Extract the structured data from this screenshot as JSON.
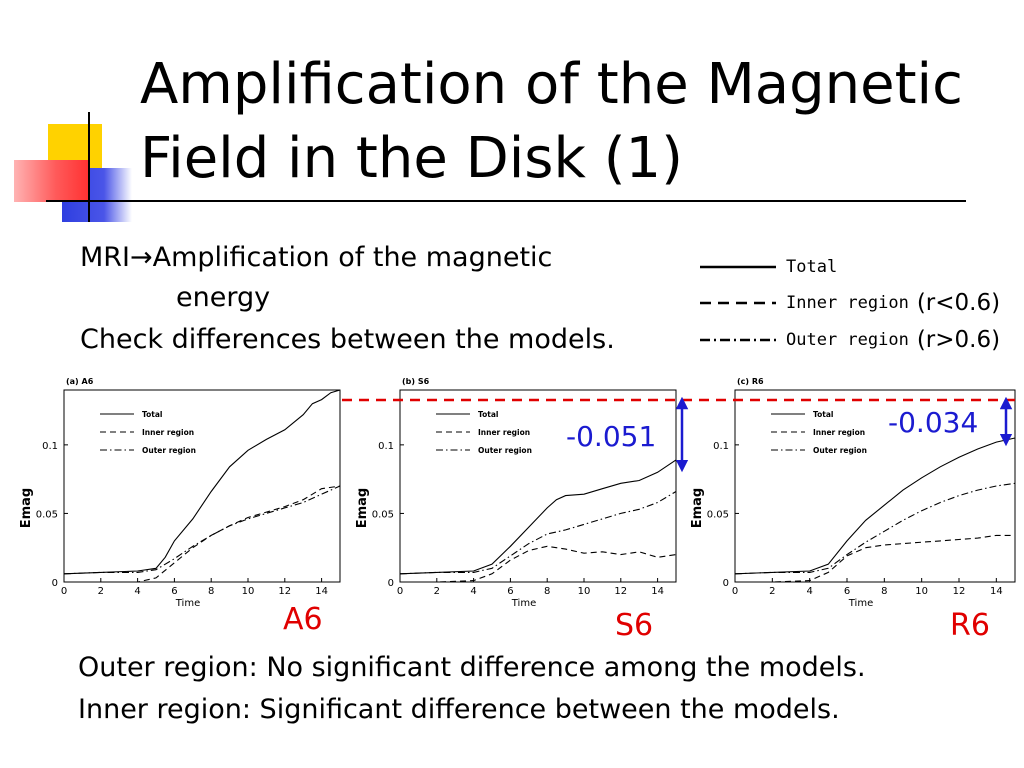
{
  "slide": {
    "title_line1": "Amplification of the Magnetic",
    "title_line2": "Field in the Disk (1)",
    "mri_line1": "MRI→Amplification of the magnetic",
    "mri_line2": "energy",
    "check_line": "Check differences between the models.",
    "legend": [
      {
        "name": "Total",
        "range": ""
      },
      {
        "name": "Inner region",
        "range": "(r<0.6)"
      },
      {
        "name": "Outer region",
        "range": "(r>0.6)"
      }
    ],
    "model_labels": [
      "A6",
      "S6",
      "R6"
    ],
    "diff_labels": {
      "s6": "-0.051",
      "r6": "-0.034"
    },
    "conclusion_line1": "Outer region: No significant difference among the models.",
    "conclusion_line2": "Inner region: Significant difference between the models.",
    "reference_line_color": "#e00000",
    "arrow_color": "#1b1bd0"
  },
  "chart_data": [
    {
      "type": "line",
      "title": "(a) A6",
      "xlabel": "Time",
      "ylabel": "Emag",
      "xlim": [
        0,
        15
      ],
      "ylim": [
        0,
        0.14
      ],
      "xticks": [
        0,
        2,
        4,
        6,
        8,
        10,
        12,
        14
      ],
      "yticks": [
        0,
        0.05,
        0.1
      ],
      "ytick_labels": [
        "0",
        "0.05",
        "0.1"
      ],
      "legend": [
        "Total",
        "Inner region",
        "Outer region"
      ],
      "series": [
        {
          "name": "Total",
          "style": "solid",
          "x": [
            0,
            2,
            4,
            5,
            5.5,
            6,
            7,
            8,
            9,
            10,
            11,
            12,
            13,
            13.5,
            14,
            14.5,
            15
          ],
          "y": [
            0.006,
            0.007,
            0.008,
            0.01,
            0.018,
            0.03,
            0.046,
            0.066,
            0.084,
            0.096,
            0.104,
            0.111,
            0.122,
            0.13,
            0.133,
            0.138,
            0.14
          ]
        },
        {
          "name": "Inner region",
          "style": "dashed",
          "x": [
            0,
            2,
            4,
            5,
            6,
            7,
            8,
            9,
            10,
            11,
            12,
            13,
            14,
            15
          ],
          "y": [
            0.0,
            0.0,
            0.0,
            0.003,
            0.014,
            0.025,
            0.034,
            0.041,
            0.047,
            0.051,
            0.055,
            0.06,
            0.068,
            0.07
          ]
        },
        {
          "name": "Outer region",
          "style": "dashdot",
          "x": [
            0,
            2,
            4,
            5,
            6,
            7,
            8,
            9,
            10,
            11,
            12,
            13,
            14,
            15
          ],
          "y": [
            0.006,
            0.007,
            0.007,
            0.009,
            0.017,
            0.026,
            0.034,
            0.041,
            0.046,
            0.05,
            0.054,
            0.058,
            0.064,
            0.07
          ]
        }
      ]
    },
    {
      "type": "line",
      "title": "(b) S6",
      "xlabel": "Time",
      "ylabel": "Emag",
      "xlim": [
        0,
        15
      ],
      "ylim": [
        0,
        0.14
      ],
      "xticks": [
        0,
        2,
        4,
        6,
        8,
        10,
        12,
        14
      ],
      "yticks": [
        0,
        0.05,
        0.1
      ],
      "ytick_labels": [
        "0",
        "0.05",
        "0.1"
      ],
      "legend": [
        "Total",
        "Inner region",
        "Outer region"
      ],
      "series": [
        {
          "name": "Total",
          "style": "solid",
          "x": [
            0,
            2,
            4,
            5,
            6,
            7,
            8,
            8.5,
            9,
            10,
            11,
            12,
            13,
            14,
            15
          ],
          "y": [
            0.006,
            0.007,
            0.008,
            0.013,
            0.026,
            0.04,
            0.054,
            0.06,
            0.063,
            0.064,
            0.068,
            0.072,
            0.074,
            0.08,
            0.089
          ]
        },
        {
          "name": "Inner region",
          "style": "dashed",
          "x": [
            0,
            2,
            4,
            5,
            6,
            7,
            8,
            9,
            10,
            11,
            12,
            13,
            14,
            15
          ],
          "y": [
            0.0,
            0.0,
            0.001,
            0.006,
            0.016,
            0.023,
            0.026,
            0.024,
            0.021,
            0.022,
            0.02,
            0.022,
            0.018,
            0.02
          ]
        },
        {
          "name": "Outer region",
          "style": "dashdot",
          "x": [
            0,
            2,
            4,
            5,
            6,
            7,
            8,
            9,
            10,
            11,
            12,
            13,
            14,
            15
          ],
          "y": [
            0.006,
            0.007,
            0.007,
            0.01,
            0.019,
            0.028,
            0.035,
            0.038,
            0.042,
            0.046,
            0.05,
            0.053,
            0.058,
            0.066
          ]
        }
      ]
    },
    {
      "type": "line",
      "title": "(c) R6",
      "xlabel": "Time",
      "ylabel": "Emag",
      "xlim": [
        0,
        15
      ],
      "ylim": [
        0,
        0.14
      ],
      "xticks": [
        0,
        2,
        4,
        6,
        8,
        10,
        12,
        14
      ],
      "yticks": [
        0,
        0.05,
        0.1
      ],
      "ytick_labels": [
        "0",
        "0.05",
        "0.1"
      ],
      "legend": [
        "Total",
        "Inner region",
        "Outer region"
      ],
      "series": [
        {
          "name": "Total",
          "style": "solid",
          "x": [
            0,
            2,
            4,
            5,
            6,
            7,
            8,
            9,
            10,
            11,
            12,
            13,
            14,
            15
          ],
          "y": [
            0.006,
            0.007,
            0.008,
            0.013,
            0.03,
            0.045,
            0.056,
            0.067,
            0.076,
            0.084,
            0.091,
            0.097,
            0.102,
            0.105
          ]
        },
        {
          "name": "Inner region",
          "style": "dashed",
          "x": [
            0,
            2,
            4,
            5,
            6,
            7,
            8,
            9,
            10,
            11,
            12,
            13,
            14,
            15
          ],
          "y": [
            0.0,
            0.0,
            0.001,
            0.007,
            0.019,
            0.025,
            0.027,
            0.028,
            0.029,
            0.03,
            0.031,
            0.032,
            0.034,
            0.034
          ]
        },
        {
          "name": "Outer region",
          "style": "dashdot",
          "x": [
            0,
            2,
            4,
            5,
            6,
            7,
            8,
            9,
            10,
            11,
            12,
            13,
            14,
            15
          ],
          "y": [
            0.006,
            0.007,
            0.007,
            0.01,
            0.02,
            0.029,
            0.037,
            0.045,
            0.052,
            0.058,
            0.063,
            0.067,
            0.07,
            0.072
          ]
        }
      ]
    }
  ]
}
